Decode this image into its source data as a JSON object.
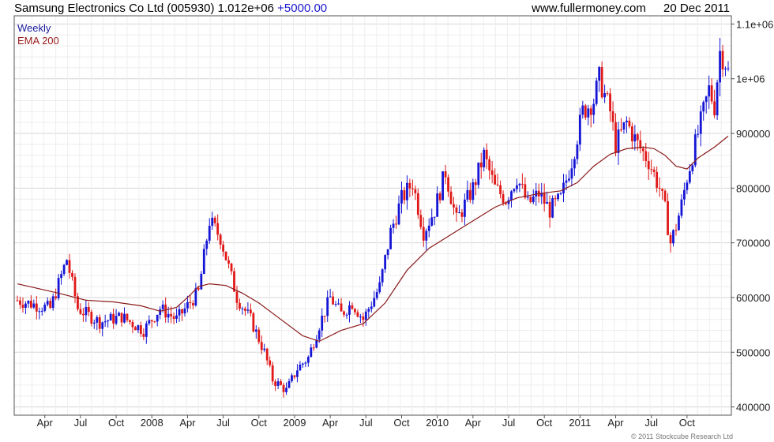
{
  "header": {
    "title": "Samsung Electronics Co Ltd (005930)",
    "last": "1.012e+06",
    "change": "+5000.00",
    "site": "www.fullermoney.com",
    "date": "20 Dec 2011"
  },
  "legend": {
    "weekly": "Weekly",
    "ema": "EMA 200"
  },
  "copyright": "© 2011 Stockcube Research Ltd",
  "colors": {
    "up": "#1515d6",
    "down": "#e01818",
    "ema": "#8b1a1a",
    "grid": "#e2e2e2",
    "axis": "#555555"
  },
  "chart_data": {
    "type": "candlestick",
    "grid": true,
    "legend_position": "top-left",
    "x_axis": {
      "ticks": [
        "Apr",
        "Jul",
        "Oct",
        "2008",
        "Apr",
        "Jul",
        "Oct",
        "2009",
        "Apr",
        "Jul",
        "Oct",
        "2010",
        "Apr",
        "Jul",
        "Oct",
        "2011",
        "Apr",
        "Jul",
        "Oct"
      ],
      "tick_weeks": [
        10,
        23,
        36,
        49,
        62,
        75,
        88,
        101,
        114,
        127,
        140,
        153,
        166,
        179,
        192,
        205,
        218,
        231,
        244
      ]
    },
    "y_axis": {
      "side": "right",
      "ylim": [
        385000,
        1115000
      ],
      "ticks": [
        400000,
        500000,
        600000,
        700000,
        800000,
        900000,
        1000000,
        1100000
      ],
      "tick_labels": [
        "400000",
        "500000",
        "600000",
        "700000",
        "800000",
        "900000",
        "1e+06",
        "1.1e+06"
      ]
    },
    "anchor_points": [
      [
        0,
        595000
      ],
      [
        12,
        580000
      ],
      [
        18,
        670000
      ],
      [
        22,
        580000
      ],
      [
        30,
        555000
      ],
      [
        38,
        565000
      ],
      [
        46,
        540000
      ],
      [
        52,
        580000
      ],
      [
        58,
        560000
      ],
      [
        66,
        610000
      ],
      [
        70,
        740000
      ],
      [
        74,
        710000
      ],
      [
        80,
        600000
      ],
      [
        85,
        560000
      ],
      [
        90,
        500000
      ],
      [
        93,
        450000
      ],
      [
        98,
        430000
      ],
      [
        102,
        470000
      ],
      [
        106,
        490000
      ],
      [
        110,
        550000
      ],
      [
        114,
        600000
      ],
      [
        118,
        570000
      ],
      [
        122,
        590000
      ],
      [
        126,
        560000
      ],
      [
        132,
        620000
      ],
      [
        136,
        720000
      ],
      [
        140,
        780000
      ],
      [
        144,
        810000
      ],
      [
        148,
        720000
      ],
      [
        152,
        760000
      ],
      [
        156,
        830000
      ],
      [
        160,
        740000
      ],
      [
        166,
        800000
      ],
      [
        170,
        860000
      ],
      [
        174,
        800000
      ],
      [
        178,
        780000
      ],
      [
        182,
        820000
      ],
      [
        186,
        770000
      ],
      [
        190,
        790000
      ],
      [
        194,
        760000
      ],
      [
        198,
        780000
      ],
      [
        202,
        850000
      ],
      [
        206,
        940000
      ],
      [
        210,
        960000
      ],
      [
        212,
        1000000
      ],
      [
        216,
        940000
      ],
      [
        218,
        880000
      ],
      [
        222,
        920000
      ],
      [
        226,
        880000
      ],
      [
        230,
        850000
      ],
      [
        234,
        800000
      ],
      [
        236,
        760000
      ],
      [
        238,
        700000
      ],
      [
        240,
        730000
      ],
      [
        242,
        770000
      ],
      [
        244,
        820000
      ],
      [
        248,
        900000
      ],
      [
        252,
        980000
      ],
      [
        254,
        950000
      ],
      [
        256,
        1050000
      ],
      [
        258,
        1030000
      ],
      [
        259,
        1012000
      ]
    ],
    "series": [
      {
        "name": "Weekly",
        "kind": "ohlc",
        "weeks": 260
      },
      {
        "name": "EMA 200",
        "kind": "line",
        "points": [
          [
            0,
            625000
          ],
          [
            15,
            608000
          ],
          [
            25,
            595000
          ],
          [
            35,
            592000
          ],
          [
            45,
            585000
          ],
          [
            52,
            575000
          ],
          [
            58,
            582000
          ],
          [
            62,
            600000
          ],
          [
            66,
            620000
          ],
          [
            70,
            625000
          ],
          [
            76,
            622000
          ],
          [
            82,
            608000
          ],
          [
            88,
            590000
          ],
          [
            96,
            560000
          ],
          [
            104,
            530000
          ],
          [
            110,
            520000
          ],
          [
            118,
            540000
          ],
          [
            126,
            552000
          ],
          [
            134,
            590000
          ],
          [
            142,
            650000
          ],
          [
            150,
            690000
          ],
          [
            158,
            715000
          ],
          [
            166,
            740000
          ],
          [
            174,
            765000
          ],
          [
            182,
            782000
          ],
          [
            190,
            790000
          ],
          [
            198,
            795000
          ],
          [
            204,
            810000
          ],
          [
            210,
            840000
          ],
          [
            216,
            862000
          ],
          [
            222,
            872000
          ],
          [
            228,
            875000
          ],
          [
            232,
            872000
          ],
          [
            236,
            860000
          ],
          [
            240,
            840000
          ],
          [
            244,
            835000
          ],
          [
            248,
            855000
          ],
          [
            254,
            875000
          ],
          [
            259,
            895000
          ]
        ]
      }
    ]
  }
}
